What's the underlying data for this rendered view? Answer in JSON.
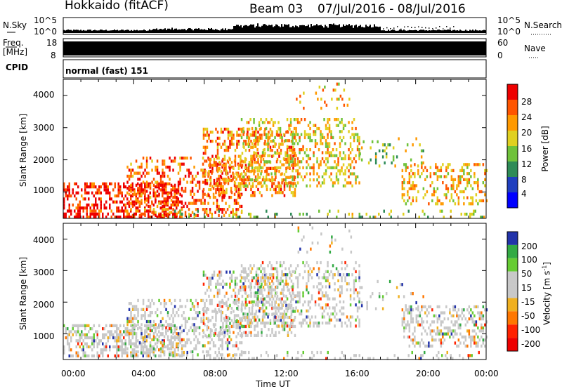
{
  "header": {
    "station": "Hokkaido (fitACF)",
    "beam": "Beam 03",
    "dates": "07/Jul/2016 - 08/Jul/2016"
  },
  "noise_panel": {
    "left_label": "N.Sky",
    "right_label": "N.Search",
    "left_ticks": [
      "10^5",
      "10^0"
    ],
    "right_ticks": [
      "10^5",
      "10^0"
    ]
  },
  "freq_panel": {
    "left_label_line1": "Freq.",
    "left_label_line2": "[MHz]",
    "right_label": "Nave",
    "left_ticks": [
      "18",
      "8"
    ],
    "right_ticks": [
      "60",
      "0"
    ]
  },
  "cpid": {
    "label": "CPID",
    "value": "normal (fast) 151"
  },
  "chart_data": [
    {
      "type": "heatmap",
      "title": "",
      "ylabel": "Slant Range [km]",
      "ylim": [
        180,
        4500
      ],
      "yticks": [
        "4000",
        "3000",
        "2000",
        "1000"
      ],
      "xlabel": "Time UT",
      "xticks": [
        "00:00",
        "04:00",
        "08:00",
        "12:00",
        "16:00",
        "20:00",
        "00:00"
      ],
      "colorbar": {
        "label": "Power [dB]",
        "ticks": [
          "28",
          "24",
          "20",
          "16",
          "12",
          "8",
          "4"
        ],
        "colors": [
          "#0000ff",
          "#1f3fbf",
          "#2e8b57",
          "#6fc23a",
          "#e0d020",
          "#ff9900",
          "#ff5500",
          "#ee0000"
        ]
      }
    },
    {
      "type": "heatmap",
      "title": "",
      "ylabel": "Slant Range [km]",
      "ylim": [
        180,
        4500
      ],
      "yticks": [
        "4000",
        "3000",
        "2000",
        "1000"
      ],
      "xlabel": "Time UT",
      "xticks": [
        "00:00",
        "04:00",
        "08:00",
        "12:00",
        "16:00",
        "20:00",
        "00:00"
      ],
      "colorbar": {
        "label": "Velocity [m s",
        "label_sup": "-1",
        "label_end": "]",
        "ticks": [
          "200",
          "100",
          "50",
          "15",
          "-15",
          "-50",
          "-100",
          "-200"
        ],
        "colors": [
          "#2233aa",
          "#33aa44",
          "#66cc33",
          "#c8c8c8",
          "#c8c8c8",
          "#f0b020",
          "#ff7700",
          "#ff2200",
          "#ee0000"
        ]
      }
    }
  ]
}
